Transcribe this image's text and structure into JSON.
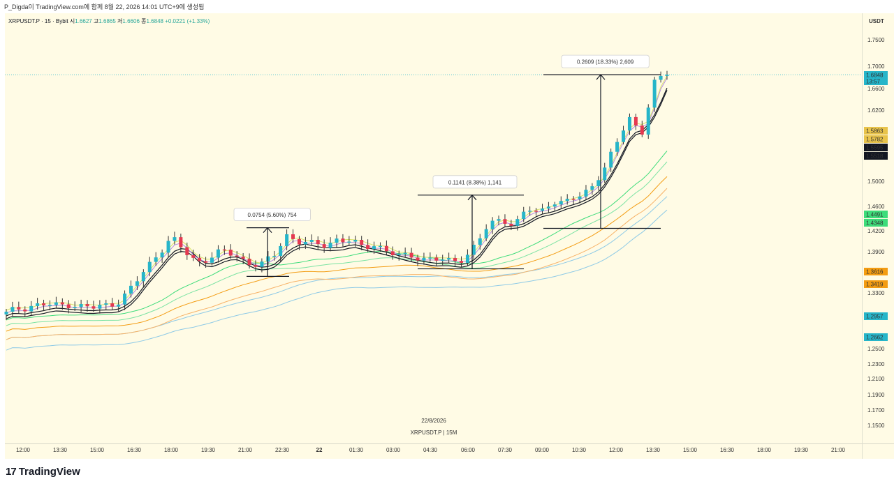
{
  "header": {
    "attribution": "P_Digda이 TradingView.com에 함께 8월 22, 2026 14:01 UTC+9에 생성됨"
  },
  "legend": {
    "symbol": "XRPUSDT.P · 15 · Bybit",
    "open_label": "시",
    "open": "1.6627",
    "high_label": "고",
    "high": "1.6865",
    "low_label": "저",
    "low": "1.6606",
    "close_label": "종",
    "close": "1.6848",
    "change": "+0.0221 (+1.33%)"
  },
  "watermark": {
    "date": "22/8/2026",
    "symbol": "XRPUSDT.P | 15M"
  },
  "footer": {
    "logo_text": "TradingView"
  },
  "colors": {
    "background": "#fffbe5",
    "up": "#26b5c9",
    "down": "#e53950",
    "accent": "#2196f3"
  },
  "chart_data": {
    "type": "candlestick",
    "currency": "USDT",
    "y_ticks": [
      "1.7500",
      "1.7000",
      "1.6600",
      "1.6200",
      "1.5000",
      "1.4600",
      "1.4200",
      "1.3900",
      "1.3300",
      "1.2500",
      "1.2300",
      "1.2100",
      "1.1900",
      "1.1700",
      "1.1500"
    ],
    "x_ticks": [
      "12:00",
      "13:30",
      "15:00",
      "16:30",
      "18:00",
      "19:30",
      "21:00",
      "22:30",
      "22",
      "01:30",
      "03:00",
      "04:30",
      "06:00",
      "07:30",
      "09:00",
      "10:30",
      "12:00",
      "13:30",
      "15:00",
      "16:30",
      "18:00",
      "19:30",
      "21:00"
    ],
    "price_labels": [
      {
        "text": "1.6848",
        "color": "#26b5c9",
        "sub": "13:57"
      },
      {
        "text": "1.5863",
        "color": "#e8c34a"
      },
      {
        "text": "1.5782",
        "color": "#e8c34a"
      },
      {
        "text": "1.5595",
        "color": "#131722"
      },
      {
        "text": "1.5518",
        "color": "#131722"
      },
      {
        "text": "1.4491",
        "color": "#3ddc7a"
      },
      {
        "text": "1.4348",
        "color": "#3ddc7a"
      },
      {
        "text": "1.3616",
        "color": "#f39c12"
      },
      {
        "text": "1.3419",
        "color": "#f39c12"
      },
      {
        "text": "1.2957",
        "color": "#26b5c9"
      },
      {
        "text": "1.2662",
        "color": "#26b5c9"
      }
    ],
    "measurements": [
      {
        "text": "0.0754 (5.60%) 754"
      },
      {
        "text": "0.1141 (8.38%) 1,141"
      },
      {
        "text": "0.2609 (18.33%) 2,609"
      }
    ],
    "candles_close_anchors": [
      1.3,
      1.308,
      1.312,
      1.313,
      1.311,
      1.315,
      1.31,
      1.308,
      1.313,
      1.32,
      1.34,
      1.365,
      1.39,
      1.41,
      1.39,
      1.375,
      1.382,
      1.39,
      1.385,
      1.375,
      1.37,
      1.382,
      1.415,
      1.405,
      1.4,
      1.4,
      1.408,
      1.405,
      1.396,
      1.402,
      1.39,
      1.382,
      1.385,
      1.38,
      1.378,
      1.375,
      1.382,
      1.4,
      1.43,
      1.44,
      1.43,
      1.455,
      1.45,
      1.47,
      1.465,
      1.475,
      1.49,
      1.52,
      1.56,
      1.61,
      1.58,
      1.67,
      1.6848
    ]
  }
}
